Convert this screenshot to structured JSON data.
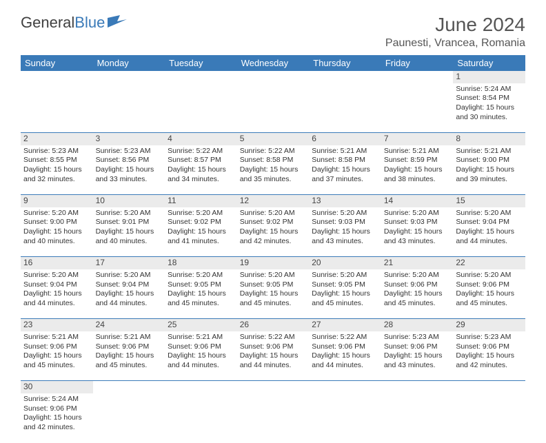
{
  "brand": {
    "text1": "General",
    "text2": "Blue",
    "flag_color": "#3a7ab8"
  },
  "title": "June 2024",
  "location": "Paunesti, Vrancea, Romania",
  "header_bg": "#3a7ab8",
  "header_fg": "#ffffff",
  "daynum_bg": "#ebebeb",
  "border_color": "#3a7ab8",
  "weekdays": [
    "Sunday",
    "Monday",
    "Tuesday",
    "Wednesday",
    "Thursday",
    "Friday",
    "Saturday"
  ],
  "weeks": [
    {
      "nums": [
        "",
        "",
        "",
        "",
        "",
        "",
        "1"
      ],
      "cells": [
        null,
        null,
        null,
        null,
        null,
        null,
        {
          "sunrise": "Sunrise: 5:24 AM",
          "sunset": "Sunset: 8:54 PM",
          "daylight": "Daylight: 15 hours and 30 minutes."
        }
      ]
    },
    {
      "nums": [
        "2",
        "3",
        "4",
        "5",
        "6",
        "7",
        "8"
      ],
      "cells": [
        {
          "sunrise": "Sunrise: 5:23 AM",
          "sunset": "Sunset: 8:55 PM",
          "daylight": "Daylight: 15 hours and 32 minutes."
        },
        {
          "sunrise": "Sunrise: 5:23 AM",
          "sunset": "Sunset: 8:56 PM",
          "daylight": "Daylight: 15 hours and 33 minutes."
        },
        {
          "sunrise": "Sunrise: 5:22 AM",
          "sunset": "Sunset: 8:57 PM",
          "daylight": "Daylight: 15 hours and 34 minutes."
        },
        {
          "sunrise": "Sunrise: 5:22 AM",
          "sunset": "Sunset: 8:58 PM",
          "daylight": "Daylight: 15 hours and 35 minutes."
        },
        {
          "sunrise": "Sunrise: 5:21 AM",
          "sunset": "Sunset: 8:58 PM",
          "daylight": "Daylight: 15 hours and 37 minutes."
        },
        {
          "sunrise": "Sunrise: 5:21 AM",
          "sunset": "Sunset: 8:59 PM",
          "daylight": "Daylight: 15 hours and 38 minutes."
        },
        {
          "sunrise": "Sunrise: 5:21 AM",
          "sunset": "Sunset: 9:00 PM",
          "daylight": "Daylight: 15 hours and 39 minutes."
        }
      ]
    },
    {
      "nums": [
        "9",
        "10",
        "11",
        "12",
        "13",
        "14",
        "15"
      ],
      "cells": [
        {
          "sunrise": "Sunrise: 5:20 AM",
          "sunset": "Sunset: 9:00 PM",
          "daylight": "Daylight: 15 hours and 40 minutes."
        },
        {
          "sunrise": "Sunrise: 5:20 AM",
          "sunset": "Sunset: 9:01 PM",
          "daylight": "Daylight: 15 hours and 40 minutes."
        },
        {
          "sunrise": "Sunrise: 5:20 AM",
          "sunset": "Sunset: 9:02 PM",
          "daylight": "Daylight: 15 hours and 41 minutes."
        },
        {
          "sunrise": "Sunrise: 5:20 AM",
          "sunset": "Sunset: 9:02 PM",
          "daylight": "Daylight: 15 hours and 42 minutes."
        },
        {
          "sunrise": "Sunrise: 5:20 AM",
          "sunset": "Sunset: 9:03 PM",
          "daylight": "Daylight: 15 hours and 43 minutes."
        },
        {
          "sunrise": "Sunrise: 5:20 AM",
          "sunset": "Sunset: 9:03 PM",
          "daylight": "Daylight: 15 hours and 43 minutes."
        },
        {
          "sunrise": "Sunrise: 5:20 AM",
          "sunset": "Sunset: 9:04 PM",
          "daylight": "Daylight: 15 hours and 44 minutes."
        }
      ]
    },
    {
      "nums": [
        "16",
        "17",
        "18",
        "19",
        "20",
        "21",
        "22"
      ],
      "cells": [
        {
          "sunrise": "Sunrise: 5:20 AM",
          "sunset": "Sunset: 9:04 PM",
          "daylight": "Daylight: 15 hours and 44 minutes."
        },
        {
          "sunrise": "Sunrise: 5:20 AM",
          "sunset": "Sunset: 9:04 PM",
          "daylight": "Daylight: 15 hours and 44 minutes."
        },
        {
          "sunrise": "Sunrise: 5:20 AM",
          "sunset": "Sunset: 9:05 PM",
          "daylight": "Daylight: 15 hours and 45 minutes."
        },
        {
          "sunrise": "Sunrise: 5:20 AM",
          "sunset": "Sunset: 9:05 PM",
          "daylight": "Daylight: 15 hours and 45 minutes."
        },
        {
          "sunrise": "Sunrise: 5:20 AM",
          "sunset": "Sunset: 9:05 PM",
          "daylight": "Daylight: 15 hours and 45 minutes."
        },
        {
          "sunrise": "Sunrise: 5:20 AM",
          "sunset": "Sunset: 9:06 PM",
          "daylight": "Daylight: 15 hours and 45 minutes."
        },
        {
          "sunrise": "Sunrise: 5:20 AM",
          "sunset": "Sunset: 9:06 PM",
          "daylight": "Daylight: 15 hours and 45 minutes."
        }
      ]
    },
    {
      "nums": [
        "23",
        "24",
        "25",
        "26",
        "27",
        "28",
        "29"
      ],
      "cells": [
        {
          "sunrise": "Sunrise: 5:21 AM",
          "sunset": "Sunset: 9:06 PM",
          "daylight": "Daylight: 15 hours and 45 minutes."
        },
        {
          "sunrise": "Sunrise: 5:21 AM",
          "sunset": "Sunset: 9:06 PM",
          "daylight": "Daylight: 15 hours and 45 minutes."
        },
        {
          "sunrise": "Sunrise: 5:21 AM",
          "sunset": "Sunset: 9:06 PM",
          "daylight": "Daylight: 15 hours and 44 minutes."
        },
        {
          "sunrise": "Sunrise: 5:22 AM",
          "sunset": "Sunset: 9:06 PM",
          "daylight": "Daylight: 15 hours and 44 minutes."
        },
        {
          "sunrise": "Sunrise: 5:22 AM",
          "sunset": "Sunset: 9:06 PM",
          "daylight": "Daylight: 15 hours and 44 minutes."
        },
        {
          "sunrise": "Sunrise: 5:23 AM",
          "sunset": "Sunset: 9:06 PM",
          "daylight": "Daylight: 15 hours and 43 minutes."
        },
        {
          "sunrise": "Sunrise: 5:23 AM",
          "sunset": "Sunset: 9:06 PM",
          "daylight": "Daylight: 15 hours and 42 minutes."
        }
      ]
    },
    {
      "nums": [
        "30",
        "",
        "",
        "",
        "",
        "",
        ""
      ],
      "cells": [
        {
          "sunrise": "Sunrise: 5:24 AM",
          "sunset": "Sunset: 9:06 PM",
          "daylight": "Daylight: 15 hours and 42 minutes."
        },
        null,
        null,
        null,
        null,
        null,
        null
      ]
    }
  ]
}
